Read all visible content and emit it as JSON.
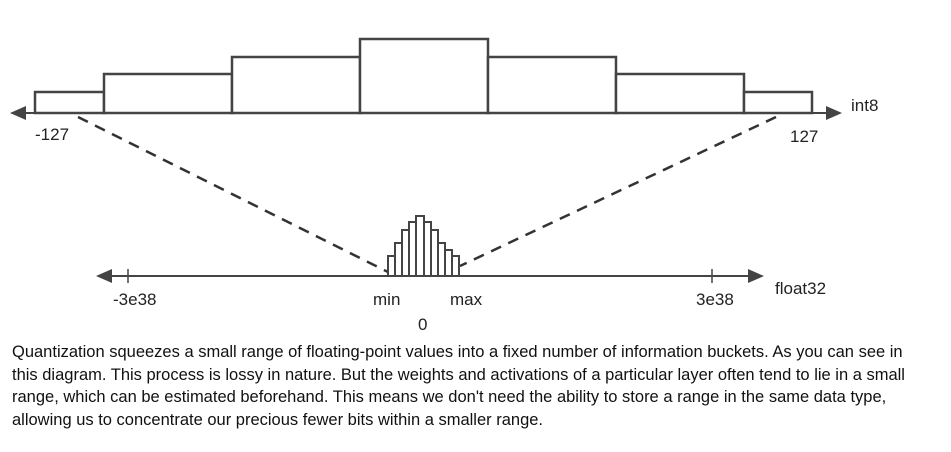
{
  "int8_axis": {
    "name": "int8",
    "min_label": "-127",
    "max_label": "127"
  },
  "float32_axis": {
    "name": "float32",
    "min_label": "-3e38",
    "max_label": "3e38",
    "range_min_label": "min",
    "range_max_label": "max",
    "zero_label": "0"
  },
  "colors": {
    "stroke": "#444444",
    "text": "#222222"
  },
  "caption": "Quantization squeezes a small range of floating-point values into a fixed number of information buckets. As you can see in this diagram. This process is lossy in nature. But the weights and activations of a particular layer often tend to lie in a small range, which can be estimated beforehand. This means we don't need the ability to store a range in the same data type, allowing us to concentrate our precious fewer bits within a smaller range."
}
